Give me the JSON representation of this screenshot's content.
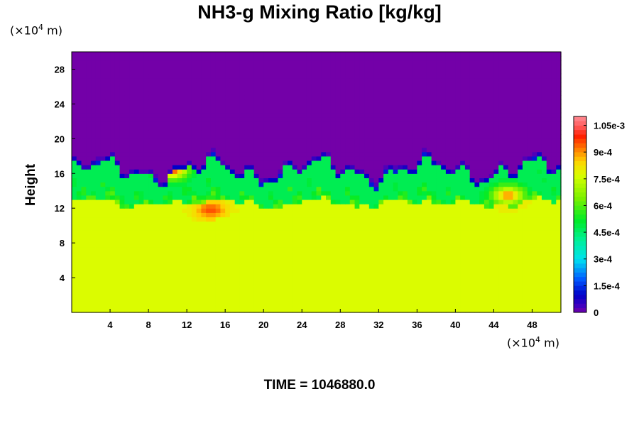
{
  "chart_data": {
    "type": "heatmap",
    "title": "NH3-g Mixing Ratio [kg/kg]",
    "ylabel": "Height",
    "x_unit": {
      "prefix": "(×10",
      "exp": "4",
      "suffix": " m)"
    },
    "y_unit": {
      "prefix": "(×10",
      "exp": "4",
      "suffix": " m)"
    },
    "xlim": [
      0,
      51
    ],
    "ylim": [
      0,
      30
    ],
    "x_ticks": [
      4,
      8,
      12,
      16,
      20,
      24,
      28,
      32,
      36,
      40,
      44,
      48
    ],
    "y_ticks": [
      4,
      8,
      12,
      16,
      20,
      24,
      28
    ],
    "colorbar": {
      "range": [
        0,
        0.0011
      ],
      "levels": 44,
      "labels": [
        "0",
        "1.5e-4",
        "3e-4",
        "4.5e-4",
        "6e-4",
        "7.5e-4",
        "9e-4",
        "1.05e-3"
      ],
      "label_values": [
        0,
        0.00015,
        0.0003,
        0.00045,
        0.0006,
        0.00075,
        0.0009,
        0.00105
      ]
    },
    "field_summary": {
      "lower_layer_value": 0.00078,
      "upper_layer_value": 0.0,
      "mixing_layer_height_range": [
        10.5,
        18
      ],
      "cloud_top_height": 18,
      "hotspots": [
        {
          "x": 14.5,
          "y": 11.8,
          "value": 0.00095
        },
        {
          "x": 10.5,
          "y": 16.5,
          "value": 0.00095
        },
        {
          "x": 45.5,
          "y": 13.5,
          "value": 0.0009
        }
      ]
    },
    "colors": {
      "upper": "#7300a8",
      "lower": "#d9ff00",
      "blue": "#0000d0",
      "cyan": "#00e0f0",
      "green": "#00f040",
      "red": "#ff2000"
    }
  },
  "time_label": "TIME = 1046880.0"
}
